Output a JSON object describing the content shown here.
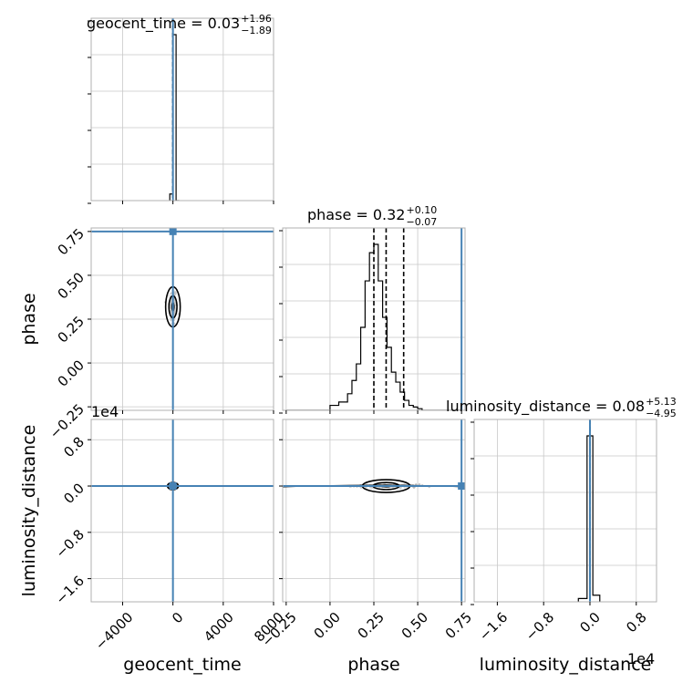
{
  "chart_data": {
    "type": "corner",
    "parameters": [
      "geocent_time",
      "phase",
      "luminosity_distance"
    ],
    "axis_labels": {
      "geocent_time": "geocent_time",
      "phase": "phase",
      "luminosity_distance": "luminosity_distance"
    },
    "ranges": {
      "geocent_time": [
        -6500,
        8000
      ],
      "phase": [
        -0.27,
        0.77
      ],
      "luminosity_distance": [
        -20000,
        11500
      ]
    },
    "tick_labels": {
      "geocent_time": [
        "−4000",
        "0",
        "4000",
        "8000"
      ],
      "phase": [
        "−0.25",
        "0.00",
        "0.25",
        "0.50",
        "0.75"
      ],
      "luminosity_distance": [
        "−1.6",
        "−0.8",
        "0.0",
        "0.8"
      ]
    },
    "tick_values": {
      "geocent_time": [
        -4000,
        0,
        4000,
        8000
      ],
      "phase": [
        -0.25,
        0.0,
        0.25,
        0.5,
        0.75
      ],
      "luminosity_distance": [
        -16000,
        -8000,
        0,
        8000
      ]
    },
    "offset_text": {
      "luminosity_distance": "1e4"
    },
    "titles": [
      {
        "param": "geocent_time",
        "prefix": "geocent_time = 0.03",
        "sup": "+1.96",
        "sub": "−1.89"
      },
      {
        "param": "phase",
        "prefix": "phase = 0.32",
        "sup": "+0.10",
        "sub": "−0.07"
      },
      {
        "param": "luminosity_distance",
        "prefix": "luminosity_distance = 0.08",
        "sup": "+5.13",
        "sub": "−4.95"
      }
    ],
    "quantiles": {
      "geocent_time": [
        -1.86,
        0.03,
        1.99
      ],
      "phase": [
        0.25,
        0.32,
        0.42
      ],
      "luminosity_distance": [
        -4.87,
        0.08,
        5.21
      ]
    },
    "truths": {
      "geocent_time": 0,
      "phase": 0.75,
      "luminosity_distance": 0
    },
    "histograms": {
      "geocent_time": {
        "bins": [
          -250,
          0,
          250,
          500
        ],
        "counts": [
          0.04,
          1.0,
          0.0
        ]
      },
      "phase": {
        "bins": [
          -0.25,
          0.0,
          0.05,
          0.1,
          0.125,
          0.15,
          0.175,
          0.2,
          0.225,
          0.25,
          0.275,
          0.3,
          0.325,
          0.35,
          0.375,
          0.4,
          0.425,
          0.45,
          0.475,
          0.5,
          0.525,
          0.55,
          0.575,
          0.6,
          0.625,
          0.65,
          0.675,
          0.7,
          0.725,
          0.75
        ],
        "counts": [
          0.0,
          0.03,
          0.05,
          0.1,
          0.18,
          0.28,
          0.5,
          0.78,
          0.95,
          1.0,
          0.78,
          0.56,
          0.38,
          0.23,
          0.17,
          0.11,
          0.06,
          0.03,
          0.02,
          0.01,
          0,
          0,
          0,
          0,
          0,
          0,
          0,
          0,
          0
        ]
      },
      "luminosity_distance": {
        "bins": [
          -2000,
          -500,
          500,
          1700
        ],
        "counts": [
          0.02,
          1.0,
          0.04
        ]
      }
    },
    "grid": true,
    "truth_color": "#4682b4",
    "contour_color": "#000000",
    "sample_color": "#a0a0a0"
  }
}
